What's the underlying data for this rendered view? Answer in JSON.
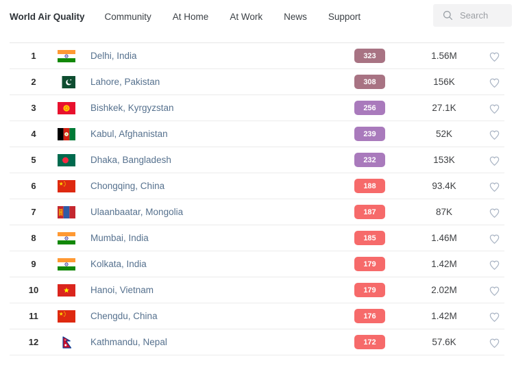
{
  "nav": {
    "brand": "World Air Quality",
    "items": [
      {
        "label": "Community"
      },
      {
        "label": "At Home"
      },
      {
        "label": "At Work"
      },
      {
        "label": "News"
      },
      {
        "label": "Support"
      }
    ],
    "search": {
      "placeholder": "Search",
      "icon": "search-icon"
    }
  },
  "aqi_colors": {
    "hazardous": "#a87383",
    "very_unhealthy": "#a97abc",
    "unhealthy": "#f66a6a"
  },
  "icons": {
    "heart": "heart-outline-icon",
    "search": "search-icon"
  },
  "table": {
    "rows": [
      {
        "rank": "1",
        "city": "Delhi, India",
        "flag": "india",
        "flag_icon": "flag-india-icon",
        "aqi": "323",
        "level": "hazardous",
        "followers": "1.56M"
      },
      {
        "rank": "2",
        "city": "Lahore, Pakistan",
        "flag": "pakistan",
        "flag_icon": "flag-pakistan-icon",
        "aqi": "308",
        "level": "hazardous",
        "followers": "156K"
      },
      {
        "rank": "3",
        "city": "Bishkek, Kyrgyzstan",
        "flag": "kyrgyzstan",
        "flag_icon": "flag-kyrgyzstan-icon",
        "aqi": "256",
        "level": "very_unhealthy",
        "followers": "27.1K"
      },
      {
        "rank": "4",
        "city": "Kabul, Afghanistan",
        "flag": "afghanistan",
        "flag_icon": "flag-afghanistan-icon",
        "aqi": "239",
        "level": "very_unhealthy",
        "followers": "52K"
      },
      {
        "rank": "5",
        "city": "Dhaka, Bangladesh",
        "flag": "bangladesh",
        "flag_icon": "flag-bangladesh-icon",
        "aqi": "232",
        "level": "very_unhealthy",
        "followers": "153K"
      },
      {
        "rank": "6",
        "city": "Chongqing, China",
        "flag": "china",
        "flag_icon": "flag-china-icon",
        "aqi": "188",
        "level": "unhealthy",
        "followers": "93.4K"
      },
      {
        "rank": "7",
        "city": "Ulaanbaatar, Mongolia",
        "flag": "mongolia",
        "flag_icon": "flag-mongolia-icon",
        "aqi": "187",
        "level": "unhealthy",
        "followers": "87K"
      },
      {
        "rank": "8",
        "city": "Mumbai, India",
        "flag": "india",
        "flag_icon": "flag-india-icon",
        "aqi": "185",
        "level": "unhealthy",
        "followers": "1.46M"
      },
      {
        "rank": "9",
        "city": "Kolkata, India",
        "flag": "india",
        "flag_icon": "flag-india-icon",
        "aqi": "179",
        "level": "unhealthy",
        "followers": "1.42M"
      },
      {
        "rank": "10",
        "city": "Hanoi, Vietnam",
        "flag": "vietnam",
        "flag_icon": "flag-vietnam-icon",
        "aqi": "179",
        "level": "unhealthy",
        "followers": "2.02M"
      },
      {
        "rank": "11",
        "city": "Chengdu, China",
        "flag": "china",
        "flag_icon": "flag-china-icon",
        "aqi": "176",
        "level": "unhealthy",
        "followers": "1.42M"
      },
      {
        "rank": "12",
        "city": "Kathmandu, Nepal",
        "flag": "nepal",
        "flag_icon": "flag-nepal-icon",
        "aqi": "172",
        "level": "unhealthy",
        "followers": "57.6K"
      }
    ]
  }
}
